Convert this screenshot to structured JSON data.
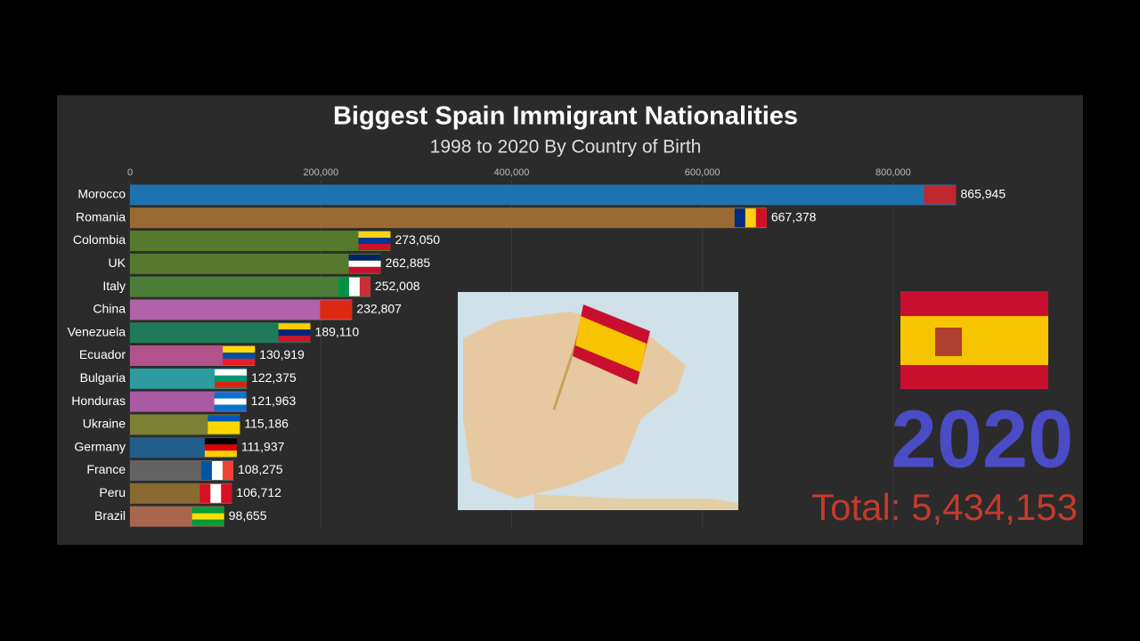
{
  "chart_data": {
    "type": "hbar",
    "title": "Biggest Spain Immigrant Nationalities",
    "subtitle": "1998 to 2020 By Country of Birth",
    "categories": [
      "Morocco",
      "Romania",
      "Colombia",
      "UK",
      "Italy",
      "China",
      "Venezuela",
      "Ecuador",
      "Bulgaria",
      "Honduras",
      "Ukraine",
      "Germany",
      "France",
      "Peru",
      "Brazil"
    ],
    "values": [
      865945,
      667378,
      273050,
      262885,
      252008,
      232807,
      189110,
      130919,
      122375,
      121963,
      115186,
      111937,
      108275,
      106712,
      98655
    ],
    "value_labels": [
      "865,945",
      "667,378",
      "273,050",
      "262,885",
      "252,008",
      "232,807",
      "189,110",
      "130,919",
      "122,375",
      "121,963",
      "115,186",
      "111,937",
      "108,275",
      "106,712",
      "98,655"
    ],
    "colors": [
      "#1f72b0",
      "#9a6a32",
      "#557a2e",
      "#557a2e",
      "#4c7d38",
      "#b262a8",
      "#1f7a5a",
      "#b2528a",
      "#2d9c9e",
      "#aa5aa2",
      "#7b8032",
      "#215e8c",
      "#636363",
      "#8a6a30",
      "#a8664e"
    ],
    "xlim": [
      0,
      900000
    ],
    "xticks": [
      0,
      {
        "value": 200000,
        "label": "200,000"
      },
      {
        "value": 400000,
        "label": "400,000"
      },
      {
        "value": 600000,
        "label": "600,000"
      },
      {
        "value": 800000,
        "label": "800,000"
      }
    ],
    "grid": true,
    "year": "2020",
    "total": "Total: 5,434,153"
  }
}
